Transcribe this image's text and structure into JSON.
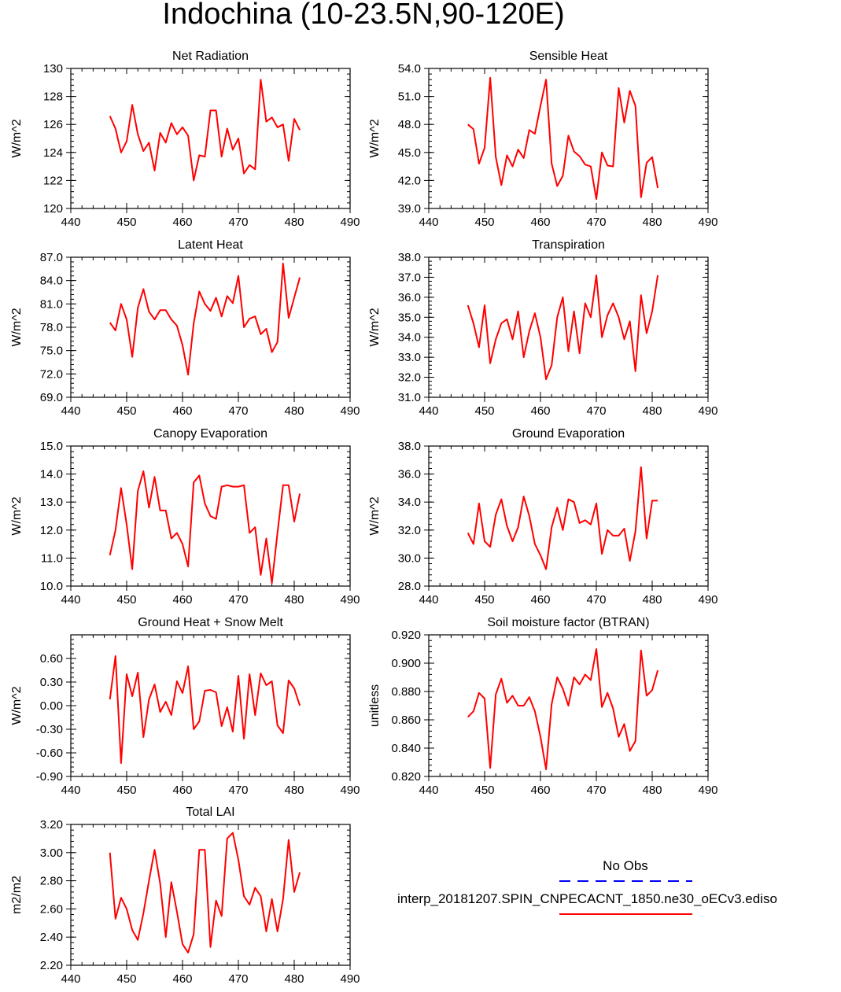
{
  "figure": {
    "title": "Indochina (10-23.5N,90-120E)"
  },
  "colors": {
    "model": "#ff0000",
    "obs": "#0000ff"
  },
  "legend": {
    "obs_label": "No Obs",
    "model_label": "interp_20181207.SPIN_CNPECACNT_1850.ne30_oECv3.ediso"
  },
  "chart_data": [
    {
      "type": "line",
      "title": "Net Radiation",
      "ylabel": "W/m^2",
      "xlim": [
        440,
        490
      ],
      "xticks": [
        440,
        450,
        460,
        470,
        480,
        490
      ],
      "ylim": [
        120,
        130
      ],
      "yticks": [
        "120",
        "122",
        "124",
        "126",
        "128",
        "130"
      ],
      "x": [
        447,
        448,
        449,
        450,
        451,
        452,
        453,
        454,
        455,
        456,
        457,
        458,
        459,
        460,
        461,
        462,
        463,
        464,
        465,
        466,
        467,
        468,
        469,
        470,
        471,
        472,
        473,
        474,
        475,
        476,
        477,
        478,
        479,
        480,
        481
      ],
      "series": [
        {
          "values": [
            126.6,
            125.7,
            124.0,
            124.8,
            127.4,
            125.3,
            124.1,
            124.7,
            122.7,
            125.4,
            124.7,
            126.1,
            125.3,
            125.8,
            125.2,
            122.0,
            123.8,
            123.7,
            127.0,
            127.0,
            123.7,
            125.7,
            124.2,
            125.0,
            122.5,
            123.1,
            122.8,
            129.2,
            126.2,
            126.5,
            125.8,
            126.0,
            123.4,
            126.4,
            125.6
          ]
        }
      ]
    },
    {
      "type": "line",
      "title": "Sensible Heat",
      "ylabel": "W/m^2",
      "xlim": [
        440,
        490
      ],
      "xticks": [
        440,
        450,
        460,
        470,
        480,
        490
      ],
      "ylim": [
        39,
        54
      ],
      "yticks": [
        "39.0",
        "42.0",
        "45.0",
        "48.0",
        "51.0",
        "54.0"
      ],
      "x": [
        447,
        448,
        449,
        450,
        451,
        452,
        453,
        454,
        455,
        456,
        457,
        458,
        459,
        460,
        461,
        462,
        463,
        464,
        465,
        466,
        467,
        468,
        469,
        470,
        471,
        472,
        473,
        474,
        475,
        476,
        477,
        478,
        479,
        480,
        481
      ],
      "series": [
        {
          "values": [
            48.0,
            47.5,
            43.8,
            45.5,
            53.0,
            44.5,
            41.5,
            44.7,
            43.5,
            45.3,
            44.4,
            47.4,
            47.0,
            50.0,
            52.8,
            43.8,
            41.4,
            42.5,
            46.8,
            45.1,
            44.6,
            43.7,
            43.5,
            40.0,
            45.0,
            43.6,
            43.5,
            51.9,
            48.2,
            51.6,
            50.0,
            40.2,
            43.9,
            44.5,
            41.2
          ]
        }
      ]
    },
    {
      "type": "line",
      "title": "Latent Heat",
      "ylabel": "W/m^2",
      "xlim": [
        440,
        490
      ],
      "xticks": [
        440,
        450,
        460,
        470,
        480,
        490
      ],
      "ylim": [
        69,
        87
      ],
      "yticks": [
        "69.0",
        "72.0",
        "75.0",
        "78.0",
        "81.0",
        "84.0",
        "87.0"
      ],
      "x": [
        447,
        448,
        449,
        450,
        451,
        452,
        453,
        454,
        455,
        456,
        457,
        458,
        459,
        460,
        461,
        462,
        463,
        464,
        465,
        466,
        467,
        468,
        469,
        470,
        471,
        472,
        473,
        474,
        475,
        476,
        477,
        478,
        479,
        480,
        481
      ],
      "series": [
        {
          "values": [
            78.6,
            77.6,
            81.0,
            79.0,
            74.2,
            80.5,
            82.9,
            80.0,
            79.0,
            80.2,
            80.2,
            79.0,
            78.2,
            75.7,
            71.9,
            78.5,
            82.6,
            81.0,
            80.1,
            81.8,
            79.4,
            82.0,
            81.1,
            84.6,
            78.0,
            79.1,
            79.4,
            77.1,
            77.8,
            74.8,
            76.1,
            86.2,
            79.2,
            81.8,
            84.4
          ]
        }
      ]
    },
    {
      "type": "line",
      "title": "Transpiration",
      "ylabel": "W/m^2",
      "xlim": [
        440,
        490
      ],
      "xticks": [
        440,
        450,
        460,
        470,
        480,
        490
      ],
      "ylim": [
        31,
        38
      ],
      "yticks": [
        "31.0",
        "32.0",
        "33.0",
        "34.0",
        "35.0",
        "36.0",
        "37.0",
        "38.0"
      ],
      "x": [
        447,
        448,
        449,
        450,
        451,
        452,
        453,
        454,
        455,
        456,
        457,
        458,
        459,
        460,
        461,
        462,
        463,
        464,
        465,
        466,
        467,
        468,
        469,
        470,
        471,
        472,
        473,
        474,
        475,
        476,
        477,
        478,
        479,
        480,
        481
      ],
      "series": [
        {
          "values": [
            35.6,
            34.7,
            33.5,
            35.6,
            32.7,
            33.9,
            34.7,
            34.9,
            33.9,
            35.3,
            33.0,
            34.3,
            35.2,
            34.0,
            31.9,
            32.6,
            35.0,
            36.0,
            33.3,
            35.3,
            33.2,
            35.7,
            35.0,
            37.1,
            34.0,
            35.1,
            35.7,
            35.0,
            33.9,
            34.8,
            32.3,
            36.1,
            34.2,
            35.3,
            37.1
          ]
        }
      ]
    },
    {
      "type": "line",
      "title": "Canopy Evaporation",
      "ylabel": "W/m^2",
      "xlim": [
        440,
        490
      ],
      "xticks": [
        440,
        450,
        460,
        470,
        480,
        490
      ],
      "ylim": [
        10,
        15
      ],
      "yticks": [
        "10.0",
        "11.0",
        "12.0",
        "13.0",
        "14.0",
        "15.0"
      ],
      "x": [
        447,
        448,
        449,
        450,
        451,
        452,
        453,
        454,
        455,
        456,
        457,
        458,
        459,
        460,
        461,
        462,
        463,
        464,
        465,
        466,
        467,
        468,
        469,
        470,
        471,
        472,
        473,
        474,
        475,
        476,
        477,
        478,
        479,
        480,
        481
      ],
      "series": [
        {
          "values": [
            11.1,
            12.0,
            13.5,
            12.2,
            10.6,
            13.4,
            14.1,
            12.8,
            13.9,
            12.7,
            12.7,
            11.7,
            11.9,
            11.5,
            10.7,
            13.7,
            13.95,
            12.95,
            12.5,
            12.4,
            13.55,
            13.6,
            13.55,
            13.55,
            13.6,
            11.9,
            12.1,
            10.4,
            11.7,
            10.1,
            11.9,
            13.6,
            13.6,
            12.3,
            13.3
          ]
        }
      ]
    },
    {
      "type": "line",
      "title": "Ground Evaporation",
      "ylabel": "W/m^2",
      "xlim": [
        440,
        490
      ],
      "xticks": [
        440,
        450,
        460,
        470,
        480,
        490
      ],
      "ylim": [
        28,
        38
      ],
      "yticks": [
        "28.0",
        "30.0",
        "32.0",
        "34.0",
        "36.0",
        "38.0"
      ],
      "x": [
        447,
        448,
        449,
        450,
        451,
        452,
        453,
        454,
        455,
        456,
        457,
        458,
        459,
        460,
        461,
        462,
        463,
        464,
        465,
        466,
        467,
        468,
        469,
        470,
        471,
        472,
        473,
        474,
        475,
        476,
        477,
        478,
        479,
        480,
        481
      ],
      "series": [
        {
          "values": [
            31.8,
            31.0,
            33.9,
            31.2,
            30.8,
            33.1,
            34.2,
            32.3,
            31.2,
            32.2,
            34.4,
            33.0,
            31.0,
            30.2,
            29.2,
            32.2,
            33.6,
            32.0,
            34.2,
            34.0,
            32.5,
            32.7,
            32.4,
            33.9,
            30.3,
            32.0,
            31.6,
            31.6,
            32.1,
            29.8,
            31.9,
            36.5,
            31.4,
            34.1,
            34.1
          ]
        }
      ]
    },
    {
      "type": "line",
      "title": "Ground Heat + Snow Melt",
      "ylabel": "W/m^2",
      "xlim": [
        440,
        490
      ],
      "xticks": [
        440,
        450,
        460,
        470,
        480,
        490
      ],
      "ylim": [
        -0.9,
        0.9
      ],
      "yticks": [
        "-0.90",
        "-0.60",
        "-0.30",
        "0.00",
        "0.30",
        "0.60"
      ],
      "ytickvalues": [
        -0.9,
        -0.6,
        -0.3,
        0.0,
        0.3,
        0.6
      ],
      "x": [
        447,
        448,
        449,
        450,
        451,
        452,
        453,
        454,
        455,
        456,
        457,
        458,
        459,
        460,
        461,
        462,
        463,
        464,
        465,
        466,
        467,
        468,
        469,
        470,
        471,
        472,
        473,
        474,
        475,
        476,
        477,
        478,
        479,
        480,
        481
      ],
      "series": [
        {
          "values": [
            0.08,
            0.63,
            -0.73,
            0.4,
            0.12,
            0.42,
            -0.4,
            0.08,
            0.27,
            -0.08,
            0.05,
            -0.12,
            0.31,
            0.16,
            0.5,
            -0.3,
            -0.2,
            0.19,
            0.2,
            0.17,
            -0.26,
            -0.02,
            -0.33,
            0.38,
            -0.42,
            0.4,
            -0.12,
            0.41,
            0.26,
            0.31,
            -0.25,
            -0.35,
            0.32,
            0.22,
            0.0
          ]
        }
      ]
    },
    {
      "type": "line",
      "title": "Soil moisture factor (BTRAN)",
      "ylabel": "unitless",
      "xlim": [
        440,
        490
      ],
      "xticks": [
        440,
        450,
        460,
        470,
        480,
        490
      ],
      "ylim": [
        0.82,
        0.92
      ],
      "yticks": [
        "0.820",
        "0.840",
        "0.860",
        "0.880",
        "0.900",
        "0.920"
      ],
      "x": [
        447,
        448,
        449,
        450,
        451,
        452,
        453,
        454,
        455,
        456,
        457,
        458,
        459,
        460,
        461,
        462,
        463,
        464,
        465,
        466,
        467,
        468,
        469,
        470,
        471,
        472,
        473,
        474,
        475,
        476,
        477,
        478,
        479,
        480,
        481
      ],
      "series": [
        {
          "values": [
            0.862,
            0.866,
            0.879,
            0.875,
            0.826,
            0.878,
            0.889,
            0.872,
            0.877,
            0.87,
            0.87,
            0.876,
            0.866,
            0.848,
            0.825,
            0.871,
            0.89,
            0.882,
            0.87,
            0.89,
            0.885,
            0.892,
            0.888,
            0.91,
            0.869,
            0.879,
            0.868,
            0.848,
            0.857,
            0.838,
            0.845,
            0.909,
            0.877,
            0.881,
            0.895
          ]
        }
      ]
    },
    {
      "type": "line",
      "title": "Total LAI",
      "ylabel": "m2/m2",
      "xlim": [
        440,
        490
      ],
      "xticks": [
        440,
        450,
        460,
        470,
        480,
        490
      ],
      "ylim": [
        2.2,
        3.2
      ],
      "yticks": [
        "2.20",
        "2.40",
        "2.60",
        "2.80",
        "3.00",
        "3.20"
      ],
      "x": [
        447,
        448,
        449,
        450,
        451,
        452,
        453,
        454,
        455,
        456,
        457,
        458,
        459,
        460,
        461,
        462,
        463,
        464,
        465,
        466,
        467,
        468,
        469,
        470,
        471,
        472,
        473,
        474,
        475,
        476,
        477,
        478,
        479,
        480,
        481
      ],
      "series": [
        {
          "values": [
            3.0,
            2.53,
            2.68,
            2.6,
            2.45,
            2.38,
            2.57,
            2.8,
            3.02,
            2.78,
            2.4,
            2.79,
            2.58,
            2.35,
            2.29,
            2.42,
            3.02,
            3.02,
            2.33,
            2.66,
            2.55,
            3.1,
            3.14,
            2.95,
            2.69,
            2.63,
            2.75,
            2.69,
            2.44,
            2.67,
            2.44,
            2.67,
            3.09,
            2.72,
            2.86
          ]
        }
      ]
    }
  ]
}
